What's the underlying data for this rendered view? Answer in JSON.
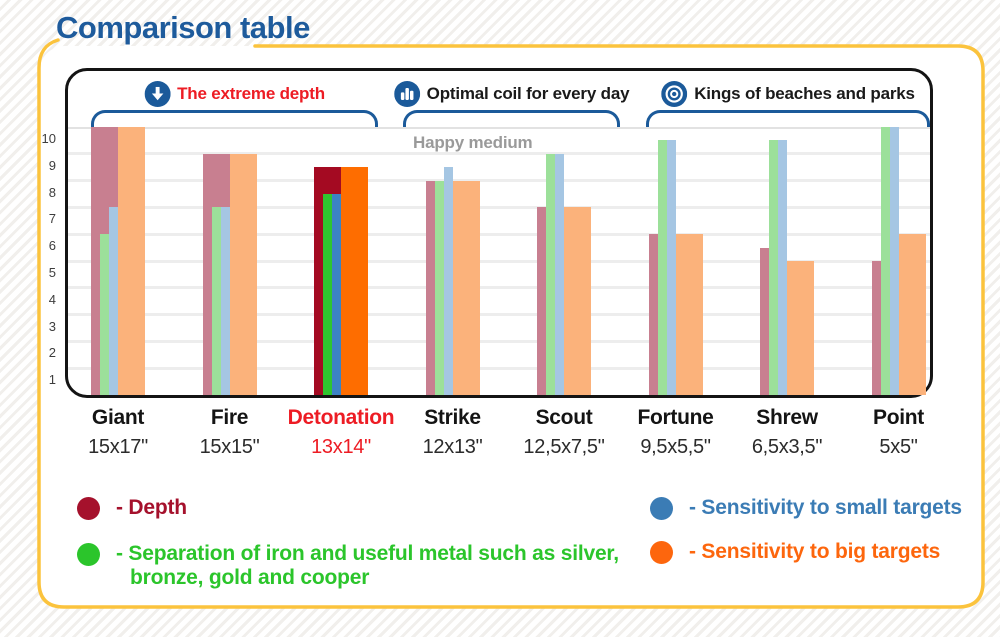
{
  "title": "Comparison table",
  "sections": [
    {
      "label": "The extreme depth",
      "icon": "arrow-down-icon",
      "color": "#ed1c24"
    },
    {
      "label": "Optimal coil for every day",
      "icon": "bar-chart-icon",
      "color": "#1a1a1a"
    },
    {
      "label": "Kings of beaches and parks",
      "icon": "target-icon",
      "color": "#1a1a1a"
    }
  ],
  "annotation": "Happy medium",
  "chart_data": {
    "type": "bar",
    "title": "Comparison table",
    "categories": [
      "Giant",
      "Fire",
      "Detonation",
      "Strike",
      "Scout",
      "Fortune",
      "Shrew",
      "Point"
    ],
    "category_sizes": [
      "15x17\"",
      "15x15\"",
      "13x14\"",
      "12x13\"",
      "12,5x7,5\"",
      "9,5x5,5\"",
      "6,5x3,5\"",
      "5x5\""
    ],
    "highlighted_category": "Detonation",
    "ylim": [
      0,
      10
    ],
    "yticks": [
      1,
      2,
      3,
      4,
      5,
      6,
      7,
      8,
      9,
      10
    ],
    "grid": true,
    "legend_position": "bottom",
    "series": [
      {
        "key": "depth",
        "name": "Depth",
        "values": [
          10,
          9,
          8.5,
          8,
          7,
          6,
          5.5,
          5
        ],
        "color_muted": "#c87f90",
        "color_highlight": "#a40a22"
      },
      {
        "key": "separation",
        "name": "Separation of iron and useful metal",
        "values": [
          6,
          7,
          7.5,
          8,
          9,
          9.5,
          9.5,
          10
        ],
        "color_muted": "#9ce09a",
        "color_highlight": "#2fc52f"
      },
      {
        "key": "small",
        "name": "Sensitivity to small targets",
        "values": [
          7,
          7,
          7.5,
          8.5,
          9,
          9.5,
          9.5,
          10
        ],
        "color_muted": "#a5c6e3",
        "color_highlight": "#3c82c4"
      },
      {
        "key": "big",
        "name": "Sensitivity to big targets",
        "values": [
          10,
          9,
          8.5,
          8,
          7,
          6,
          5,
          6
        ],
        "color_muted": "#fbb27b",
        "color_highlight": "#fe6d00"
      }
    ]
  },
  "legend": {
    "items": [
      {
        "label": "- Depth",
        "color": "#a5112c"
      },
      {
        "label": "- Separation of iron and useful metal such as silver, bronze, gold and cooper",
        "color": "#2bc52b"
      },
      {
        "label": "- Sensitivity to small targets",
        "color": "#3b7cb5"
      },
      {
        "label": "- Sensitivity to big targets",
        "color": "#fd660d"
      }
    ]
  },
  "colors": {
    "card_border": "#fbc33d",
    "frame_border": "#141414",
    "bracket_blue": "#1b5a9a",
    "title_blue": "#1e5b9c",
    "highlight_text": "#ed1c24"
  }
}
